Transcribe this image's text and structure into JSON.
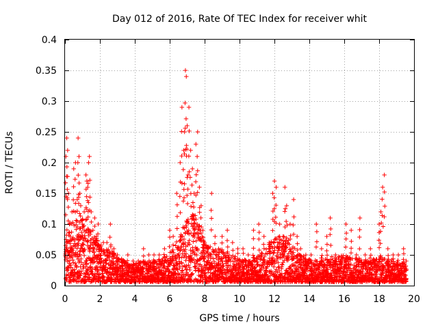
{
  "chart_data": {
    "type": "scatter",
    "title": "Day 012 of 2016, Rate Of TEC Index for receiver whit",
    "xlabel": "GPS time / hours",
    "ylabel": "ROTI / TECUs",
    "xlim": [
      0,
      20
    ],
    "ylim": [
      0,
      0.4
    ],
    "xticks": [
      0,
      2,
      4,
      6,
      8,
      10,
      12,
      14,
      16,
      18,
      20
    ],
    "xtick_labels": [
      "0",
      "2",
      "4",
      "6",
      "8",
      "10",
      "12",
      "14",
      "16",
      "18",
      "20"
    ],
    "yticks": [
      0,
      0.05,
      0.1,
      0.15,
      0.2,
      0.25,
      0.3,
      0.35,
      0.4
    ],
    "ytick_labels": [
      "0",
      "0.05",
      "0.1",
      "0.15",
      "0.2",
      "0.25",
      "0.3",
      "0.35",
      "0.4"
    ],
    "grid": true,
    "marker": "+",
    "marker_color": "#ff0000",
    "series": [
      {
        "name": "ROTI",
        "x": [
          0.05,
          0.1,
          0.15,
          0.2,
          0.25,
          0.3,
          0.4,
          0.5,
          0.6,
          0.7,
          0.75,
          0.8,
          0.85,
          0.9,
          1.0,
          1.1,
          1.2,
          1.25,
          1.3,
          1.35,
          1.4,
          1.5,
          1.6,
          1.7,
          1.8,
          1.9,
          2.0,
          2.2,
          2.4,
          2.6,
          2.8,
          3.0,
          3.3,
          3.6,
          3.9,
          4.2,
          4.5,
          4.8,
          5.1,
          5.4,
          5.7,
          6.0,
          6.2,
          6.4,
          6.6,
          6.7,
          6.8,
          6.85,
          6.9,
          6.95,
          7.0,
          7.05,
          7.1,
          7.2,
          7.3,
          7.4,
          7.5,
          7.6,
          7.7,
          7.8,
          7.9,
          8.0,
          8.2,
          8.4,
          8.6,
          8.8,
          9.0,
          9.3,
          9.6,
          9.9,
          10.2,
          10.5,
          10.8,
          11.1,
          11.4,
          11.7,
          11.9,
          12.0,
          12.1,
          12.3,
          12.5,
          12.6,
          12.7,
          12.9,
          13.1,
          13.3,
          13.5,
          13.8,
          14.1,
          14.4,
          14.7,
          15.0,
          15.2,
          15.5,
          15.8,
          16.1,
          16.4,
          16.7,
          16.9,
          17.2,
          17.5,
          17.8,
          18.0,
          18.1,
          18.2,
          18.3,
          18.5,
          18.8,
          19.1,
          19.4,
          19.55
        ],
        "y": [
          0.21,
          0.24,
          0.22,
          0.15,
          0.1,
          0.08,
          0.12,
          0.19,
          0.2,
          0.14,
          0.24,
          0.21,
          0.15,
          0.13,
          0.1,
          0.12,
          0.18,
          0.17,
          0.16,
          0.2,
          0.21,
          0.12,
          0.09,
          0.11,
          0.08,
          0.1,
          0.06,
          0.07,
          0.07,
          0.1,
          0.06,
          0.05,
          0.04,
          0.05,
          0.04,
          0.04,
          0.06,
          0.05,
          0.05,
          0.05,
          0.06,
          0.09,
          0.08,
          0.15,
          0.2,
          0.29,
          0.22,
          0.25,
          0.35,
          0.34,
          0.26,
          0.18,
          0.29,
          0.22,
          0.19,
          0.15,
          0.23,
          0.25,
          0.16,
          0.13,
          0.09,
          0.07,
          0.06,
          0.15,
          0.08,
          0.06,
          0.08,
          0.09,
          0.07,
          0.06,
          0.06,
          0.05,
          0.09,
          0.1,
          0.08,
          0.07,
          0.15,
          0.17,
          0.16,
          0.1,
          0.08,
          0.16,
          0.13,
          0.1,
          0.14,
          0.08,
          0.06,
          0.05,
          0.05,
          0.1,
          0.06,
          0.08,
          0.11,
          0.05,
          0.04,
          0.1,
          0.09,
          0.05,
          0.11,
          0.05,
          0.06,
          0.04,
          0.1,
          0.12,
          0.16,
          0.18,
          0.06,
          0.05,
          0.05,
          0.06,
          0.04
        ]
      }
    ],
    "baseline_band": {
      "note": "dense ROTI noise floor depicted",
      "x": [
        0.0,
        0.5,
        1.0,
        1.5,
        2.0,
        2.5,
        3.0,
        3.5,
        4.0,
        4.5,
        5.0,
        5.5,
        6.0,
        6.5,
        7.0,
        7.5,
        8.0,
        8.5,
        9.0,
        9.5,
        10.0,
        10.5,
        11.0,
        11.5,
        12.0,
        12.5,
        13.0,
        13.5,
        14.0,
        14.5,
        15.0,
        15.5,
        16.0,
        16.5,
        17.0,
        17.5,
        18.0,
        18.5,
        19.0,
        19.55
      ],
      "upper": [
        0.09,
        0.11,
        0.11,
        0.09,
        0.07,
        0.06,
        0.05,
        0.04,
        0.035,
        0.04,
        0.04,
        0.045,
        0.05,
        0.08,
        0.11,
        0.12,
        0.07,
        0.06,
        0.06,
        0.05,
        0.045,
        0.04,
        0.05,
        0.06,
        0.08,
        0.08,
        0.07,
        0.05,
        0.045,
        0.04,
        0.045,
        0.05,
        0.05,
        0.045,
        0.045,
        0.04,
        0.05,
        0.045,
        0.04,
        0.035
      ]
    }
  }
}
